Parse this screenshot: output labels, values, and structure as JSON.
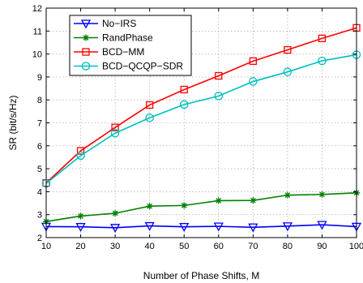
{
  "chart_data": {
    "type": "line",
    "title": "",
    "xlabel": "Number of Phase Shifts, M",
    "ylabel": "SR (bit/s/Hz)",
    "x": [
      10,
      20,
      30,
      40,
      50,
      60,
      70,
      80,
      90,
      100
    ],
    "xlim": [
      10,
      100
    ],
    "ylim": [
      2,
      12
    ],
    "xticks": [
      "10",
      "20",
      "30",
      "40",
      "50",
      "60",
      "70",
      "80",
      "90",
      "100"
    ],
    "yticks": [
      "2",
      "3",
      "4",
      "5",
      "6",
      "7",
      "8",
      "9",
      "10",
      "11",
      "12"
    ],
    "grid": true,
    "legend_position": "top-left",
    "series": [
      {
        "name": "No−IRS",
        "color": "#0000ff",
        "marker": "triangle-down",
        "values": [
          2.48,
          2.47,
          2.43,
          2.51,
          2.47,
          2.49,
          2.45,
          2.5,
          2.56,
          2.48
        ]
      },
      {
        "name": "RandPhase",
        "color": "#008000",
        "marker": "star",
        "values": [
          2.7,
          2.94,
          3.06,
          3.37,
          3.4,
          3.61,
          3.62,
          3.85,
          3.88,
          3.95
        ]
      },
      {
        "name": "BCD−MM",
        "color": "#ff0000",
        "marker": "square",
        "values": [
          4.38,
          5.78,
          6.8,
          7.78,
          8.45,
          9.05,
          9.69,
          10.18,
          10.68,
          11.14
        ]
      },
      {
        "name": "BCD−QCQP−SDR",
        "color": "#00bfbf",
        "marker": "circle",
        "values": [
          4.36,
          5.57,
          6.55,
          7.22,
          7.8,
          8.17,
          8.8,
          9.22,
          9.7,
          9.97
        ]
      }
    ]
  }
}
